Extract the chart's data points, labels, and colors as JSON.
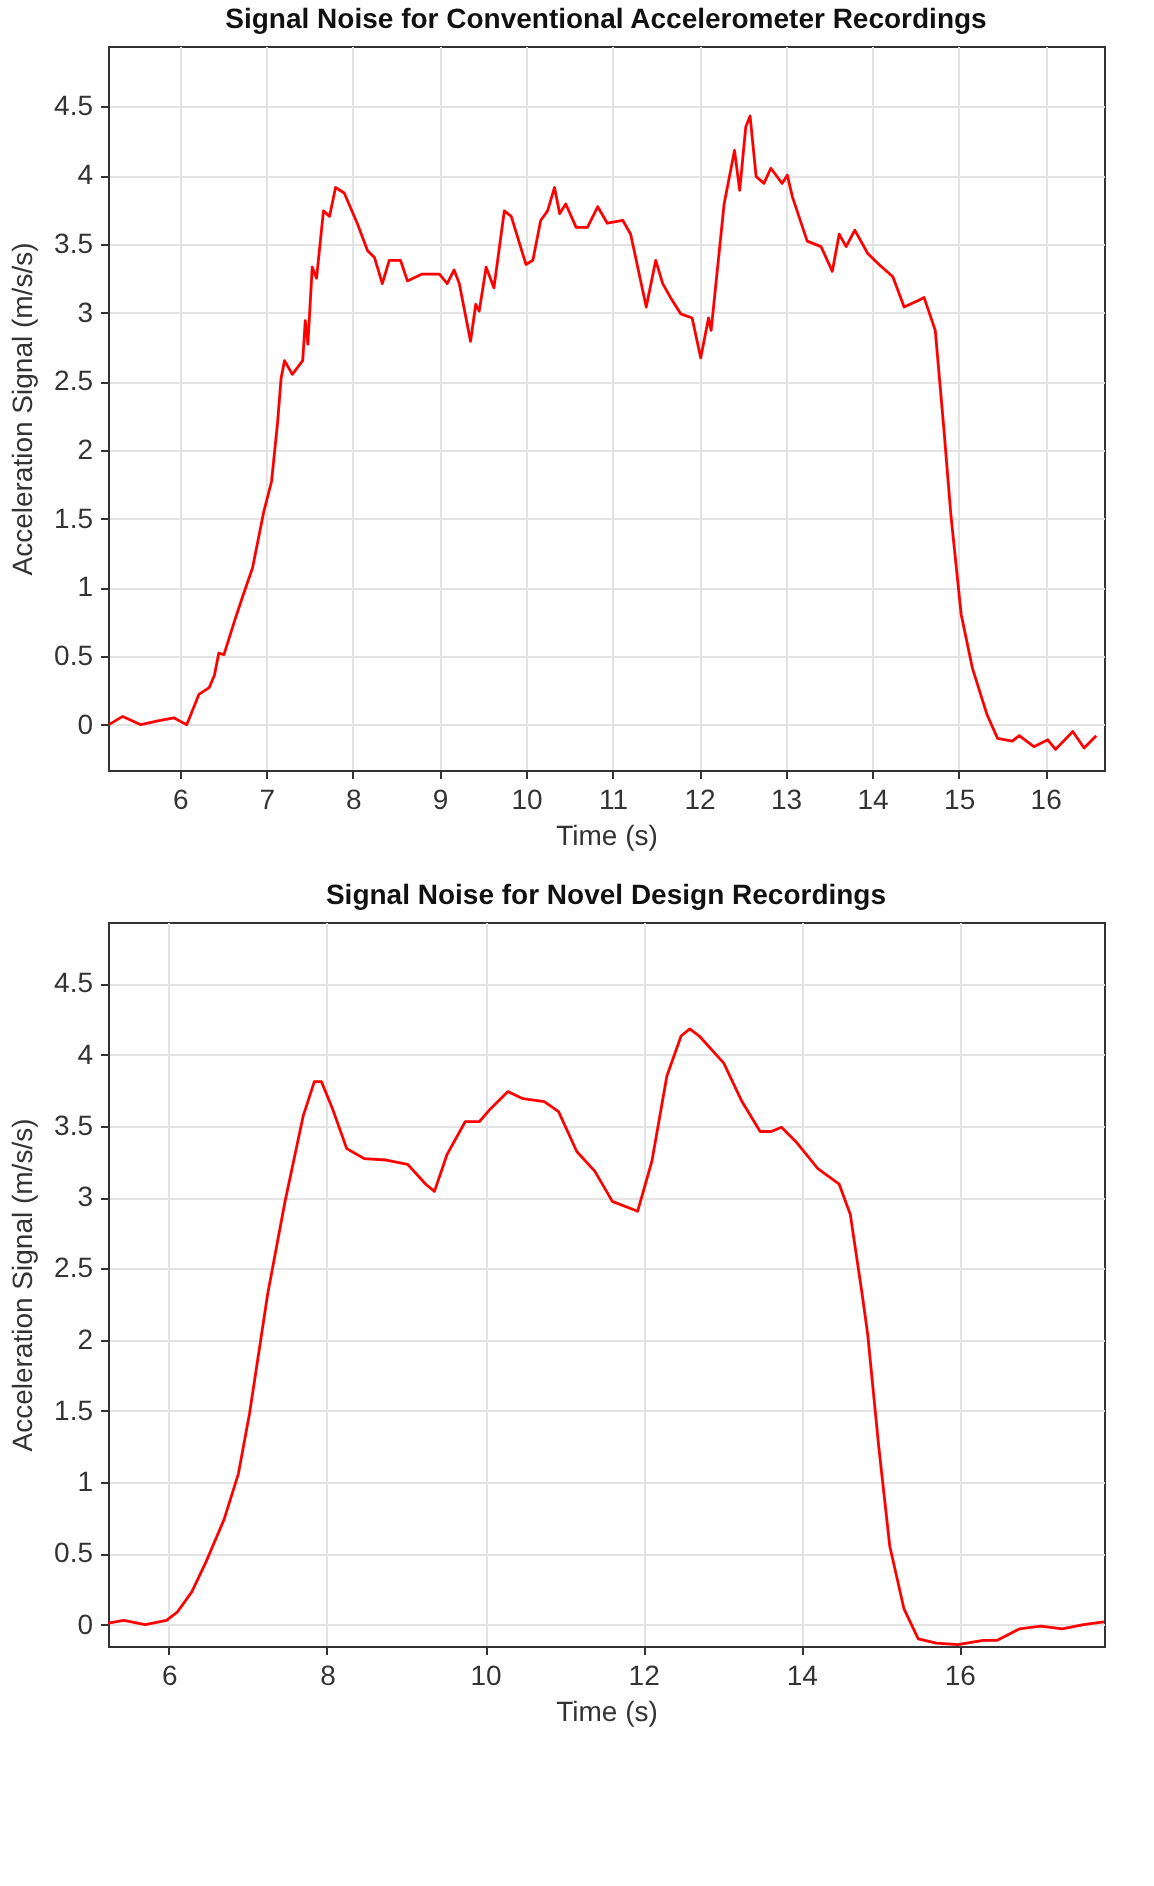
{
  "chart_data": [
    {
      "type": "line",
      "title": "Signal Noise for Conventional Accelerometer Recordings",
      "xlabel": "Time (s)",
      "ylabel": "Acceleration Signal (m/s/s)",
      "xlim": [
        5.17,
        16.68
      ],
      "ylim": [
        -0.33,
        4.94
      ],
      "xticks": [
        6,
        7,
        8,
        9,
        10,
        11,
        12,
        13,
        14,
        15,
        16
      ],
      "yticks": [
        0,
        0.5,
        1,
        1.5,
        2,
        2.5,
        3,
        3.5,
        4,
        4.5
      ],
      "grid": true,
      "series": [
        {
          "color": "#ff0000",
          "x": [
            5.18,
            5.34,
            5.55,
            5.76,
            5.93,
            6.08,
            6.22,
            6.34,
            6.4,
            6.45,
            6.51,
            6.63,
            6.73,
            6.84,
            6.97,
            7.06,
            7.13,
            7.17,
            7.21,
            7.3,
            7.42,
            7.45,
            7.48,
            7.53,
            7.58,
            7.66,
            7.73,
            7.8,
            7.9,
            8.05,
            8.17,
            8.25,
            8.34,
            8.42,
            8.55,
            8.63,
            8.8,
            9.0,
            9.09,
            9.17,
            9.23,
            9.36,
            9.42,
            9.46,
            9.54,
            9.63,
            9.75,
            9.83,
            10.0,
            10.08,
            10.17,
            10.25,
            10.33,
            10.39,
            10.46,
            10.58,
            10.71,
            10.83,
            10.94,
            11.12,
            11.21,
            11.39,
            11.5,
            11.58,
            11.67,
            11.79,
            11.92,
            12.02,
            12.11,
            12.14,
            12.29,
            12.41,
            12.47,
            12.54,
            12.59,
            12.66,
            12.75,
            12.83,
            12.96,
            13.02,
            13.08,
            13.25,
            13.41,
            13.54,
            13.62,
            13.7,
            13.8,
            13.95,
            14.08,
            14.24,
            14.37,
            14.54,
            14.6,
            14.73,
            14.83,
            14.91,
            15.03,
            15.16,
            15.33,
            15.45,
            15.62,
            15.7,
            15.87,
            16.03,
            16.12,
            16.32,
            16.45,
            16.59
          ],
          "values": [
            0.0,
            0.06,
            0.0,
            0.03,
            0.05,
            0.0,
            0.22,
            0.27,
            0.36,
            0.52,
            0.51,
            0.75,
            0.94,
            1.14,
            1.55,
            1.77,
            2.2,
            2.52,
            2.65,
            2.55,
            2.65,
            2.94,
            2.77,
            3.33,
            3.25,
            3.74,
            3.7,
            3.91,
            3.87,
            3.65,
            3.45,
            3.4,
            3.21,
            3.38,
            3.38,
            3.23,
            3.28,
            3.28,
            3.21,
            3.31,
            3.21,
            2.79,
            3.06,
            3.01,
            3.33,
            3.18,
            3.74,
            3.7,
            3.35,
            3.38,
            3.67,
            3.74,
            3.91,
            3.72,
            3.79,
            3.62,
            3.62,
            3.77,
            3.65,
            3.67,
            3.57,
            3.04,
            3.38,
            3.21,
            3.11,
            2.99,
            2.96,
            2.67,
            2.96,
            2.87,
            3.79,
            4.18,
            3.89,
            4.35,
            4.43,
            3.99,
            3.94,
            4.05,
            3.94,
            4.0,
            3.84,
            3.52,
            3.48,
            3.3,
            3.57,
            3.48,
            3.6,
            3.43,
            3.35,
            3.26,
            3.04,
            3.09,
            3.11,
            2.87,
            2.15,
            1.53,
            0.8,
            0.41,
            0.07,
            -0.1,
            -0.12,
            -0.08,
            -0.16,
            -0.11,
            -0.18,
            -0.05,
            -0.17,
            -0.08
          ]
        }
      ]
    },
    {
      "type": "line",
      "title": "Signal Noise for Novel Design Recordings",
      "xlabel": "Time (s)",
      "ylabel": "Acceleration Signal (m/s/s)",
      "xlim": [
        5.23,
        17.83
      ],
      "ylim": [
        -0.15,
        4.93
      ],
      "xticks": [
        6,
        8,
        10,
        12,
        14,
        16
      ],
      "yticks": [
        0,
        0.5,
        1,
        1.5,
        2,
        2.5,
        3,
        3.5,
        4,
        4.5
      ],
      "grid": true,
      "series": [
        {
          "color": "#ff0000",
          "x": [
            5.23,
            5.43,
            5.7,
            5.97,
            6.11,
            6.29,
            6.47,
            6.7,
            6.88,
            7.02,
            7.16,
            7.25,
            7.47,
            7.7,
            7.84,
            7.93,
            8.07,
            8.25,
            8.47,
            8.75,
            9.02,
            9.25,
            9.36,
            9.52,
            9.75,
            9.93,
            10.07,
            10.29,
            10.48,
            10.75,
            10.93,
            11.16,
            11.39,
            11.61,
            11.93,
            12.11,
            12.3,
            12.48,
            12.59,
            12.71,
            13.02,
            13.25,
            13.48,
            13.62,
            13.75,
            13.93,
            14.21,
            14.48,
            14.62,
            14.77,
            14.84,
            14.98,
            15.12,
            15.3,
            15.48,
            15.71,
            15.98,
            16.3,
            16.48,
            16.76,
            17.03,
            17.3,
            17.57,
            17.83
          ],
          "values": [
            0.01,
            0.03,
            0.0,
            0.03,
            0.09,
            0.23,
            0.44,
            0.74,
            1.06,
            1.48,
            1.99,
            2.32,
            2.97,
            3.57,
            3.81,
            3.81,
            3.62,
            3.34,
            3.27,
            3.26,
            3.23,
            3.09,
            3.04,
            3.3,
            3.53,
            3.53,
            3.62,
            3.74,
            3.69,
            3.67,
            3.6,
            3.32,
            3.18,
            2.97,
            2.9,
            3.25,
            3.85,
            4.13,
            4.18,
            4.13,
            3.94,
            3.67,
            3.46,
            3.46,
            3.49,
            3.39,
            3.2,
            3.09,
            2.88,
            2.32,
            2.04,
            1.25,
            0.55,
            0.11,
            -0.1,
            -0.13,
            -0.14,
            -0.11,
            -0.11,
            -0.03,
            -0.01,
            -0.03,
            0.0,
            0.02
          ]
        }
      ]
    }
  ]
}
